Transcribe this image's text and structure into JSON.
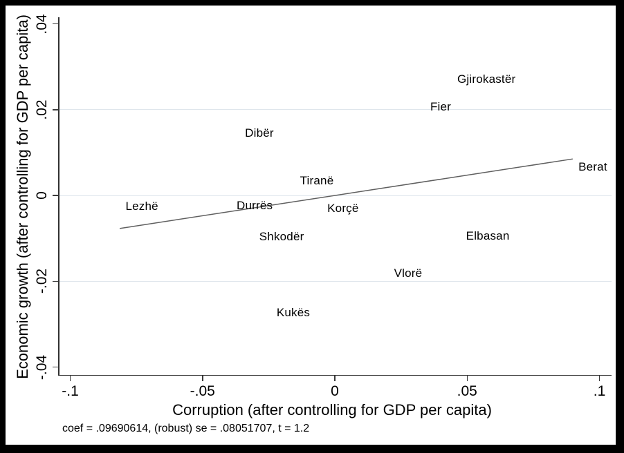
{
  "figure": {
    "y_axis_title": "Economic growth (after controlling for GDP per capita)",
    "x_axis_title": "Corruption (after controlling for GDP per capita)",
    "footnote": "coef = .09690614, (robust) se = .08051707, t = 1.2"
  },
  "chart_data": {
    "type": "scatter",
    "title": "",
    "xlabel": "Corruption (after controlling for GDP per capita)",
    "ylabel": "Economic growth (after controlling for GDP per capita)",
    "xlim": [
      -0.105,
      0.105
    ],
    "ylim": [
      -0.043,
      0.042
    ],
    "grid": "horizontal-partial",
    "legend": "none",
    "marker_style": "text-labels-only",
    "points": [
      {
        "label": "Gjirokastër",
        "x": 0.0573,
        "y": 0.027
      },
      {
        "label": "Fier",
        "x": 0.04,
        "y": 0.0206
      },
      {
        "label": "Dibër",
        "x": -0.0285,
        "y": 0.0145
      },
      {
        "label": "Berat",
        "x": 0.0975,
        "y": 0.0066
      },
      {
        "label": "Tiranë",
        "x": -0.0068,
        "y": 0.0034
      },
      {
        "label": "Lezhë",
        "x": -0.0729,
        "y": -0.0026
      },
      {
        "label": "Durrës",
        "x": -0.0303,
        "y": -0.0024
      },
      {
        "label": "Korçë",
        "x": 0.0031,
        "y": -0.0031
      },
      {
        "label": "Shkodër",
        "x": -0.0201,
        "y": -0.0097
      },
      {
        "label": "Elbasan",
        "x": 0.0578,
        "y": -0.0095
      },
      {
        "label": "Vlorë",
        "x": 0.0277,
        "y": -0.0182
      },
      {
        "label": "Kukës",
        "x": -0.0157,
        "y": -0.0274
      }
    ],
    "fit_line": {
      "x1": -0.0813,
      "y1": -0.0077,
      "x2": 0.0899,
      "y2": 0.0085,
      "coef": 0.09690614,
      "se": 0.08051707,
      "t": 1.2
    },
    "x_ticks": [
      {
        "v": -0.1,
        "label": "-.1"
      },
      {
        "v": -0.05,
        "label": "-.05"
      },
      {
        "v": 0,
        "label": "0"
      },
      {
        "v": 0.05,
        "label": ".05"
      },
      {
        "v": 0.1,
        "label": ".1"
      }
    ],
    "y_ticks": [
      {
        "v": 0.04,
        "label": ".04",
        "grid": false
      },
      {
        "v": 0.02,
        "label": ".02",
        "grid": true
      },
      {
        "v": 0,
        "label": "0",
        "grid": true
      },
      {
        "v": -0.02,
        "label": "-.02",
        "grid": true
      },
      {
        "v": -0.04,
        "label": "-.04",
        "grid": false
      }
    ],
    "colors": {
      "background": "#ffffff",
      "frame": "#000000",
      "gridline": "#dfe6ec",
      "axis": "#303030",
      "fit_line": "#5f5f5f",
      "text": "#000000"
    }
  }
}
